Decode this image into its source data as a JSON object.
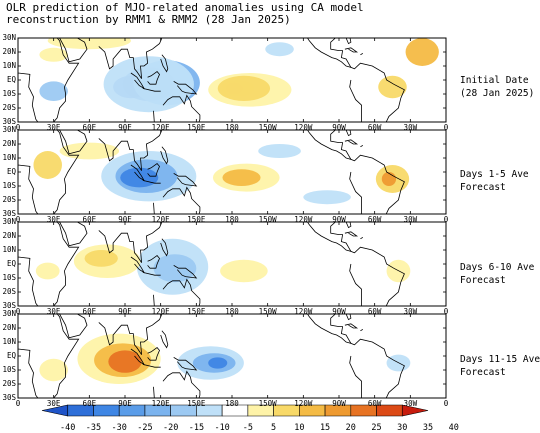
{
  "title": {
    "line1": "OLR prediction of MJO-related anomalies using CA model",
    "line2": "reconstruction by RMM1 & RMM2 (28 Jan 2025)"
  },
  "panels": [
    {
      "label1": "Initial Date",
      "label2": "(28 Jan 2025)"
    },
    {
      "label1": "Days 1-5 Ave",
      "label2": "Forecast"
    },
    {
      "label1": "Days 6-10 Ave",
      "label2": "Forecast"
    },
    {
      "label1": "Days 11-15 Ave",
      "label2": "Forecast"
    }
  ],
  "lat_labels": [
    "30N",
    "20N",
    "10N",
    "EQ",
    "10S",
    "20S",
    "30S"
  ],
  "lon_labels": [
    "0",
    "30E",
    "60E",
    "90E",
    "120E",
    "150E",
    "180",
    "150W",
    "120W",
    "90W",
    "60W",
    "30W",
    "0"
  ],
  "colorbar": {
    "labels": [
      "-40",
      "-35",
      "-30",
      "-25",
      "-20",
      "-15",
      "-10",
      "-5",
      "5",
      "10",
      "15",
      "20",
      "25",
      "30",
      "35",
      "40"
    ],
    "colors": [
      "#1f54c8",
      "#2e6fd8",
      "#3f86e4",
      "#5a9ce8",
      "#7bb3ee",
      "#9cc9f2",
      "#bfe0f8",
      "#ffffff",
      "#fef3a8",
      "#f8d968",
      "#f4bb45",
      "#ee9a31",
      "#e77323",
      "#dc4a16",
      "#c71c0e"
    ]
  },
  "blobs": {
    "p0": [
      {
        "cx": 110,
        "cy": -3,
        "rx": 22,
        "ry": 12,
        "fill": "#2e6fd8"
      },
      {
        "cx": 95,
        "cy": -5,
        "rx": 15,
        "ry": 8,
        "fill": "#1f54c8"
      },
      {
        "cx": 125,
        "cy": -2,
        "rx": 28,
        "ry": 16,
        "fill": "#7bb3ee"
      },
      {
        "cx": 110,
        "cy": -3,
        "rx": 38,
        "ry": 20,
        "fill": "#bfe0f8"
      },
      {
        "cx": -175,
        "cy": -6,
        "rx": 14,
        "ry": 6,
        "fill": "#ee9a31"
      },
      {
        "cx": -178,
        "cy": -6,
        "rx": 7,
        "ry": 4,
        "fill": "#dc4a16"
      },
      {
        "cx": -165,
        "cy": -7,
        "rx": 35,
        "ry": 12,
        "fill": "#fef3a8"
      },
      {
        "cx": -170,
        "cy": -6,
        "rx": 22,
        "ry": 9,
        "fill": "#f8d968"
      },
      {
        "cx": -45,
        "cy": -5,
        "rx": 12,
        "ry": 8,
        "fill": "#f8d968"
      },
      {
        "cx": -20,
        "cy": 20,
        "rx": 14,
        "ry": 10,
        "fill": "#f4bb45"
      },
      {
        "cx": 30,
        "cy": -8,
        "rx": 12,
        "ry": 7,
        "fill": "#9cc9f2"
      },
      {
        "cx": 60,
        "cy": 28,
        "rx": 35,
        "ry": 6,
        "fill": "#fef3a8"
      },
      {
        "cx": -140,
        "cy": 22,
        "rx": 12,
        "ry": 5,
        "fill": "#bfe0f8"
      },
      {
        "cx": 30,
        "cy": 18,
        "rx": 12,
        "ry": 5,
        "fill": "#fef3a8"
      }
    ],
    "p1": [
      {
        "cx": 110,
        "cy": -3,
        "rx": 40,
        "ry": 18,
        "fill": "#bfe0f8"
      },
      {
        "cx": 108,
        "cy": -3,
        "rx": 26,
        "ry": 12,
        "fill": "#7bb3ee"
      },
      {
        "cx": 102,
        "cy": -4,
        "rx": 16,
        "ry": 7,
        "fill": "#3f86e4"
      },
      {
        "cx": -168,
        "cy": -4,
        "rx": 28,
        "ry": 10,
        "fill": "#fef3a8"
      },
      {
        "cx": -172,
        "cy": -4,
        "rx": 16,
        "ry": 6,
        "fill": "#f4bb45"
      },
      {
        "cx": -45,
        "cy": -5,
        "rx": 14,
        "ry": 10,
        "fill": "#f8d968"
      },
      {
        "cx": -48,
        "cy": -5,
        "rx": 6,
        "ry": 5,
        "fill": "#ee9a31"
      },
      {
        "cx": 25,
        "cy": 5,
        "rx": 12,
        "ry": 10,
        "fill": "#f8d968"
      },
      {
        "cx": 60,
        "cy": 15,
        "rx": 25,
        "ry": 6,
        "fill": "#fef3a8"
      },
      {
        "cx": -100,
        "cy": -18,
        "rx": 20,
        "ry": 5,
        "fill": "#bfe0f8"
      },
      {
        "cx": -140,
        "cy": 15,
        "rx": 18,
        "ry": 5,
        "fill": "#bfe0f8"
      }
    ],
    "p2": [
      {
        "cx": 130,
        "cy": -2,
        "rx": 30,
        "ry": 20,
        "fill": "#bfe0f8"
      },
      {
        "cx": 132,
        "cy": -3,
        "rx": 18,
        "ry": 10,
        "fill": "#9cc9f2"
      },
      {
        "cx": 75,
        "cy": 2,
        "rx": 28,
        "ry": 12,
        "fill": "#fef3a8"
      },
      {
        "cx": 70,
        "cy": 4,
        "rx": 14,
        "ry": 6,
        "fill": "#f8d968"
      },
      {
        "cx": -170,
        "cy": -5,
        "rx": 20,
        "ry": 8,
        "fill": "#fef3a8"
      },
      {
        "cx": -40,
        "cy": -5,
        "rx": 10,
        "ry": 8,
        "fill": "#fef3a8"
      },
      {
        "cx": 25,
        "cy": -5,
        "rx": 10,
        "ry": 6,
        "fill": "#fef3a8"
      }
    ],
    "p3": [
      {
        "cx": 85,
        "cy": -2,
        "rx": 35,
        "ry": 18,
        "fill": "#fef3a8"
      },
      {
        "cx": 88,
        "cy": -3,
        "rx": 24,
        "ry": 12,
        "fill": "#f4bb45"
      },
      {
        "cx": 90,
        "cy": -4,
        "rx": 14,
        "ry": 8,
        "fill": "#e77323"
      },
      {
        "cx": 162,
        "cy": -5,
        "rx": 28,
        "ry": 12,
        "fill": "#bfe0f8"
      },
      {
        "cx": 165,
        "cy": -5,
        "rx": 18,
        "ry": 7,
        "fill": "#7bb3ee"
      },
      {
        "cx": 168,
        "cy": -5,
        "rx": 8,
        "ry": 4,
        "fill": "#3f86e4"
      },
      {
        "cx": 30,
        "cy": -10,
        "rx": 12,
        "ry": 8,
        "fill": "#fef3a8"
      },
      {
        "cx": -40,
        "cy": -5,
        "rx": 10,
        "ry": 6,
        "fill": "#bfe0f8"
      }
    ]
  }
}
